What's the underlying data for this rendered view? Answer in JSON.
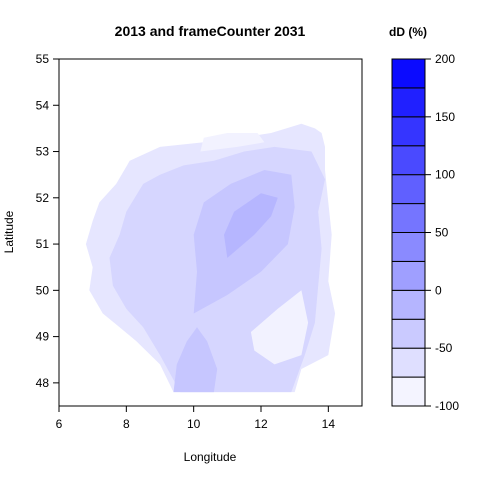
{
  "chart_data": {
    "type": "filled-contour",
    "title": "2013 and frameCounter 2031",
    "xlabel": "Longitude",
    "ylabel": "Latitude",
    "xlim": [
      6,
      15
    ],
    "ylim": [
      47.5,
      55
    ],
    "x_ticks": [
      6,
      8,
      10,
      12,
      14
    ],
    "y_ticks": [
      48,
      49,
      50,
      51,
      52,
      53,
      54,
      55
    ],
    "grid": false,
    "colorbar": {
      "title": "dD (%)",
      "range": [
        -100,
        200
      ],
      "step": 25,
      "tick_values": [
        -100,
        -50,
        0,
        50,
        100,
        150,
        200
      ],
      "color_low": "#ffffff",
      "color_high": "#0000ff"
    },
    "regions": [
      {
        "level": [
          -50,
          -25
        ],
        "color": "#e6e6ff",
        "polygon": [
          [
            9.4,
            47.8
          ],
          [
            13.0,
            47.8
          ],
          [
            13.2,
            48.3
          ],
          [
            14.0,
            48.6
          ],
          [
            14.2,
            49.5
          ],
          [
            14.0,
            50.2
          ],
          [
            14.1,
            51.2
          ],
          [
            14.0,
            51.9
          ],
          [
            13.9,
            52.6
          ],
          [
            13.9,
            53.1
          ],
          [
            13.8,
            53.4
          ],
          [
            13.6,
            53.5
          ],
          [
            13.2,
            53.6
          ],
          [
            12.3,
            53.4
          ],
          [
            11.4,
            53.3
          ],
          [
            10.3,
            53.2
          ],
          [
            9.0,
            53.1
          ],
          [
            8.7,
            53.0
          ],
          [
            8.1,
            52.8
          ],
          [
            7.7,
            52.3
          ],
          [
            7.2,
            51.9
          ],
          [
            7.0,
            51.5
          ],
          [
            6.8,
            51.0
          ],
          [
            7.0,
            50.5
          ],
          [
            6.9,
            50.0
          ],
          [
            7.3,
            49.5
          ],
          [
            7.8,
            49.2
          ],
          [
            8.3,
            48.9
          ],
          [
            9.0,
            48.4
          ]
        ]
      },
      {
        "level": [
          -25,
          0
        ],
        "color": "#d6d6ff",
        "polygon": [
          [
            9.6,
            47.8
          ],
          [
            12.9,
            47.8
          ],
          [
            13.3,
            48.6
          ],
          [
            13.6,
            49.3
          ],
          [
            13.7,
            50.1
          ],
          [
            13.8,
            50.9
          ],
          [
            13.7,
            51.7
          ],
          [
            13.9,
            52.4
          ],
          [
            13.5,
            53.0
          ],
          [
            12.4,
            53.1
          ],
          [
            11.5,
            53.0
          ],
          [
            10.6,
            52.8
          ],
          [
            9.7,
            52.7
          ],
          [
            9.0,
            52.5
          ],
          [
            8.5,
            52.3
          ],
          [
            8.0,
            51.7
          ],
          [
            7.8,
            51.2
          ],
          [
            7.5,
            50.7
          ],
          [
            7.6,
            50.1
          ],
          [
            8.0,
            49.6
          ],
          [
            8.5,
            49.2
          ],
          [
            9.0,
            48.6
          ]
        ]
      },
      {
        "level": [
          0,
          25
        ],
        "color": "#c6c6ff",
        "polygon": [
          [
            10.0,
            49.5
          ],
          [
            11.0,
            49.9
          ],
          [
            12.0,
            50.4
          ],
          [
            12.8,
            51.0
          ],
          [
            13.0,
            51.8
          ],
          [
            12.9,
            52.5
          ],
          [
            12.1,
            52.6
          ],
          [
            11.1,
            52.3
          ],
          [
            10.3,
            51.9
          ],
          [
            10.0,
            51.2
          ],
          [
            10.1,
            50.4
          ]
        ]
      },
      {
        "level": [
          0,
          25
        ],
        "color": "#c6c6ff",
        "polygon": [
          [
            9.4,
            47.8
          ],
          [
            10.6,
            47.8
          ],
          [
            10.7,
            48.3
          ],
          [
            10.4,
            48.9
          ],
          [
            10.1,
            49.2
          ],
          [
            9.8,
            48.9
          ],
          [
            9.5,
            48.4
          ]
        ]
      },
      {
        "level": [
          25,
          50
        ],
        "color": "#b6b6ff",
        "polygon": [
          [
            11.0,
            50.7
          ],
          [
            11.8,
            51.2
          ],
          [
            12.3,
            51.6
          ],
          [
            12.5,
            52.0
          ],
          [
            12.0,
            52.1
          ],
          [
            11.2,
            51.7
          ],
          [
            10.9,
            51.2
          ]
        ]
      },
      {
        "level": [
          -75,
          -50
        ],
        "color": "#f2f2ff",
        "polygon": [
          [
            11.7,
            49.1
          ],
          [
            12.5,
            49.6
          ],
          [
            13.2,
            50.0
          ],
          [
            13.4,
            49.3
          ],
          [
            13.2,
            48.6
          ],
          [
            12.4,
            48.4
          ],
          [
            11.8,
            48.7
          ]
        ]
      },
      {
        "level": [
          -75,
          -50
        ],
        "color": "#f2f2ff",
        "polygon": [
          [
            10.2,
            53.0
          ],
          [
            11.3,
            53.1
          ],
          [
            12.1,
            53.2
          ],
          [
            11.9,
            53.4
          ],
          [
            11.0,
            53.4
          ],
          [
            10.3,
            53.3
          ]
        ]
      }
    ]
  }
}
